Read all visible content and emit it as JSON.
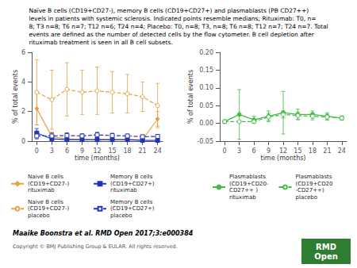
{
  "chart_data": [
    {
      "type": "line",
      "title": "Naïve B cells (CD19+CD27-), memory B cells (CD19+CD27+) and plasmablasts (PB CD27++)\nlevels in patients with systemic sclerosis. Indicated points resemble medians; Rituximab: T0, n=\n8; T3 n=8; T6 n=7; T12 n=6; T24 n=4; Placebo: T0, n=8; T3, n=8; T6 n=8; T12 n=7; T24 n=7. Total\nevents are defined as the number of detected cells by the flow cytometer. B cell depletion after\nrituximab treatment is seen in all B cell subsets.",
      "xlabel": "time (months)",
      "ylabel": "% of total events",
      "x": [
        0,
        3,
        6,
        9,
        12,
        15,
        18,
        21,
        24
      ],
      "xlim": [
        -1,
        25
      ],
      "xticks": [
        0,
        3,
        6,
        9,
        12,
        15,
        18,
        21,
        24
      ],
      "ylim": [
        0,
        6
      ],
      "yticks": [
        0,
        2,
        4,
        6
      ],
      "grid": false,
      "legend": "bottom",
      "series": [
        {
          "name": "Naive B cells\n(CD19+CD27-)\nrituximab",
          "color": "#E8A040",
          "marker": "diamond",
          "line_style": "solid",
          "values": [
            2.2,
            0.3,
            0.15,
            0.1,
            0.1,
            0.1,
            0.1,
            0.1,
            1.5
          ],
          "errors": [
            1.1,
            0.3,
            0.1,
            0.1,
            0.1,
            0.05,
            0.05,
            0.05,
            0.5
          ]
        },
        {
          "name": "Naive B cells\n(CD19+CD27-)\nplacebo",
          "color": "#E8A040",
          "marker": "circle_open",
          "line_style": "dashed",
          "values": [
            3.3,
            2.8,
            3.5,
            3.3,
            3.4,
            3.3,
            3.2,
            3.0,
            2.4
          ],
          "errors": [
            2.2,
            2.0,
            1.8,
            1.5,
            1.6,
            1.4,
            1.3,
            1.0,
            1.5
          ]
        },
        {
          "name": "Memory B cells\n(CD19+CD27+)\nrituximab",
          "color": "#2233BB",
          "marker": "square",
          "line_style": "solid",
          "values": [
            0.55,
            0.15,
            0.1,
            0.1,
            0.1,
            0.1,
            0.1,
            0.05,
            0.05
          ],
          "errors": [
            0.3,
            0.1,
            0.05,
            0.05,
            0.05,
            0.05,
            0.05,
            0.03,
            0.03
          ]
        },
        {
          "name": "Memory B cells\n(CD19+CD27+)\nplacebo",
          "color": "#2233BB",
          "marker": "square_open",
          "line_style": "dashed",
          "values": [
            0.35,
            0.35,
            0.38,
            0.35,
            0.42,
            0.38,
            0.35,
            0.3,
            0.32
          ],
          "errors": [
            0.2,
            0.2,
            0.18,
            0.15,
            0.18,
            0.15,
            0.12,
            0.1,
            0.12
          ]
        }
      ],
      "annotations": [
        {
          "text": "Maaike Boonstra et al. RMD Open 2017;3:e000384"
        },
        {
          "text": "Copyright © BMJ Publishing Group & EULAR. All rights reserved."
        },
        {
          "text": "RMD\nOpen",
          "color": "#2E7D32"
        }
      ]
    },
    {
      "type": "line",
      "xlabel": "time (months)",
      "ylabel": "% of total events",
      "x": [
        0,
        3,
        6,
        9,
        12,
        15,
        18,
        21,
        24
      ],
      "xlim": [
        -1,
        25
      ],
      "xticks": [
        0,
        3,
        6,
        9,
        12,
        15,
        18,
        21,
        24
      ],
      "ylim": [
        -0.05,
        0.2
      ],
      "yticks": [
        -0.05,
        {
          "value": 0,
          "label": "0.00"
        },
        0.05,
        {
          "value": 0.1,
          "label": "0.10"
        },
        0.15,
        {
          "value": 0.2,
          "label": "0.20"
        }
      ],
      "grid": false,
      "legend": "bottom",
      "series": [
        {
          "name": "Plasmablasts\n(CD19+CD20-\nCD27++ )\nrituximab",
          "color": "#44BB44",
          "marker": "circle",
          "line_style": "solid",
          "values": [
            0.005,
            0.025,
            0.01,
            0.02,
            0.03,
            0.025,
            0.025,
            0.02,
            0.015
          ],
          "errors": [
            0.005,
            0.07,
            0.01,
            0.015,
            0.06,
            0.015,
            0.01,
            0.01,
            0.005
          ]
        },
        {
          "name": "Plasmablasts\n(CD19+CD20\n-CD27++)\nplacebo",
          "color": "#44BB44",
          "marker": "circle_open",
          "line_style": "dashed",
          "values": [
            0.005,
            0.005,
            0.005,
            0.018,
            0.025,
            0.022,
            0.02,
            0.018,
            0.015
          ],
          "errors": [
            0.003,
            0.003,
            0.003,
            0.01,
            0.01,
            0.01,
            0.01,
            0.008,
            0.006
          ]
        }
      ]
    }
  ]
}
